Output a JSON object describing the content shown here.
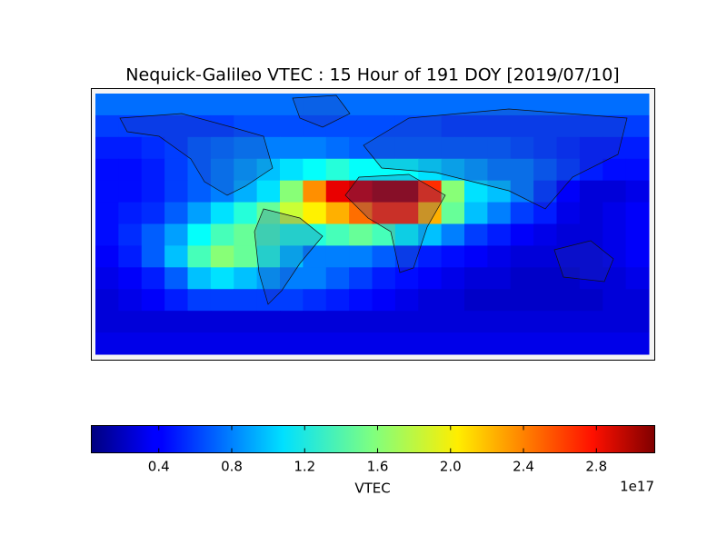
{
  "chart_data": {
    "type": "heatmap",
    "title": "Nequick-Galileo VTEC : 15 Hour of 191 DOY [2019/07/10]",
    "cmap": "jet",
    "x": [
      -172.5,
      -157.5,
      -142.5,
      -127.5,
      -112.5,
      -97.5,
      -82.5,
      -67.5,
      -52.5,
      -37.5,
      -22.5,
      -7.5,
      7.5,
      22.5,
      37.5,
      52.5,
      67.5,
      82.5,
      97.5,
      112.5,
      127.5,
      142.5,
      157.5,
      172.5
    ],
    "y": [
      82.5,
      67.5,
      52.5,
      37.5,
      22.5,
      7.5,
      -7.5,
      -22.5,
      -37.5,
      -52.5,
      -67.5,
      -82.5
    ],
    "xlim": [
      -180,
      180
    ],
    "ylim": [
      -90,
      90
    ],
    "values": [
      [
        0.75,
        0.75,
        0.75,
        0.75,
        0.75,
        0.75,
        0.75,
        0.75,
        0.75,
        0.75,
        0.75,
        0.75,
        0.75,
        0.75,
        0.75,
        0.75,
        0.75,
        0.75,
        0.75,
        0.75,
        0.75,
        0.75,
        0.75,
        0.75
      ],
      [
        0.6,
        0.6,
        0.6,
        0.6,
        0.6,
        0.6,
        0.65,
        0.65,
        0.65,
        0.65,
        0.65,
        0.65,
        0.65,
        0.65,
        0.65,
        0.6,
        0.6,
        0.6,
        0.6,
        0.6,
        0.6,
        0.6,
        0.6,
        0.6
      ],
      [
        0.5,
        0.5,
        0.55,
        0.6,
        0.7,
        0.75,
        0.8,
        0.8,
        0.8,
        0.8,
        0.75,
        0.7,
        0.7,
        0.7,
        0.7,
        0.7,
        0.7,
        0.7,
        0.65,
        0.6,
        0.55,
        0.5,
        0.5,
        0.5
      ],
      [
        0.45,
        0.45,
        0.5,
        0.6,
        0.7,
        0.8,
        0.9,
        1.0,
        1.1,
        1.2,
        1.3,
        1.2,
        1.2,
        1.2,
        1.1,
        1.0,
        0.9,
        0.8,
        0.8,
        0.7,
        0.6,
        0.5,
        0.45,
        0.45
      ],
      [
        0.45,
        0.45,
        0.5,
        0.6,
        0.7,
        0.8,
        0.95,
        1.1,
        1.6,
        2.3,
        2.8,
        2.9,
        3.0,
        3.0,
        2.6,
        1.6,
        1.1,
        1.0,
        0.8,
        0.6,
        0.4,
        0.3,
        0.3,
        0.35
      ],
      [
        0.45,
        0.5,
        0.55,
        0.7,
        0.9,
        1.1,
        1.3,
        1.5,
        1.8,
        2.0,
        2.2,
        2.4,
        2.6,
        2.6,
        2.2,
        1.5,
        1.0,
        0.8,
        0.6,
        0.5,
        0.35,
        0.3,
        0.35,
        0.4
      ],
      [
        0.45,
        0.55,
        0.7,
        0.9,
        1.2,
        1.4,
        1.5,
        1.4,
        1.3,
        1.3,
        1.4,
        1.5,
        1.4,
        1.2,
        1.0,
        0.8,
        0.6,
        0.5,
        0.4,
        0.35,
        0.3,
        0.3,
        0.35,
        0.4
      ],
      [
        0.4,
        0.5,
        0.7,
        1.0,
        1.4,
        1.6,
        1.5,
        1.3,
        1.0,
        0.8,
        0.8,
        0.8,
        0.7,
        0.6,
        0.5,
        0.45,
        0.4,
        0.35,
        0.3,
        0.3,
        0.3,
        0.3,
        0.35,
        0.4
      ],
      [
        0.35,
        0.4,
        0.5,
        0.7,
        1.0,
        1.1,
        1.0,
        0.9,
        0.8,
        0.8,
        0.7,
        0.6,
        0.5,
        0.45,
        0.4,
        0.35,
        0.3,
        0.3,
        0.25,
        0.25,
        0.25,
        0.3,
        0.3,
        0.35
      ],
      [
        0.3,
        0.35,
        0.4,
        0.5,
        0.6,
        0.6,
        0.6,
        0.6,
        0.6,
        0.55,
        0.5,
        0.45,
        0.4,
        0.35,
        0.3,
        0.3,
        0.25,
        0.25,
        0.25,
        0.25,
        0.25,
        0.25,
        0.3,
        0.3
      ],
      [
        0.3,
        0.3,
        0.3,
        0.3,
        0.3,
        0.3,
        0.3,
        0.3,
        0.3,
        0.3,
        0.3,
        0.3,
        0.3,
        0.3,
        0.3,
        0.3,
        0.3,
        0.3,
        0.3,
        0.3,
        0.3,
        0.3,
        0.3,
        0.3
      ],
      [
        0.35,
        0.35,
        0.35,
        0.35,
        0.35,
        0.35,
        0.35,
        0.35,
        0.35,
        0.35,
        0.35,
        0.35,
        0.35,
        0.35,
        0.35,
        0.35,
        0.35,
        0.35,
        0.35,
        0.35,
        0.35,
        0.35,
        0.35,
        0.35
      ]
    ],
    "colorbar": {
      "label": "VTEC",
      "offset_label": "1e17",
      "lim": [
        0.03,
        3.12
      ],
      "ticks": [
        0.4,
        0.8,
        1.2,
        1.6,
        {
          "value": 2.0,
          "label": "2.0"
        },
        2.4,
        2.8
      ]
    }
  }
}
